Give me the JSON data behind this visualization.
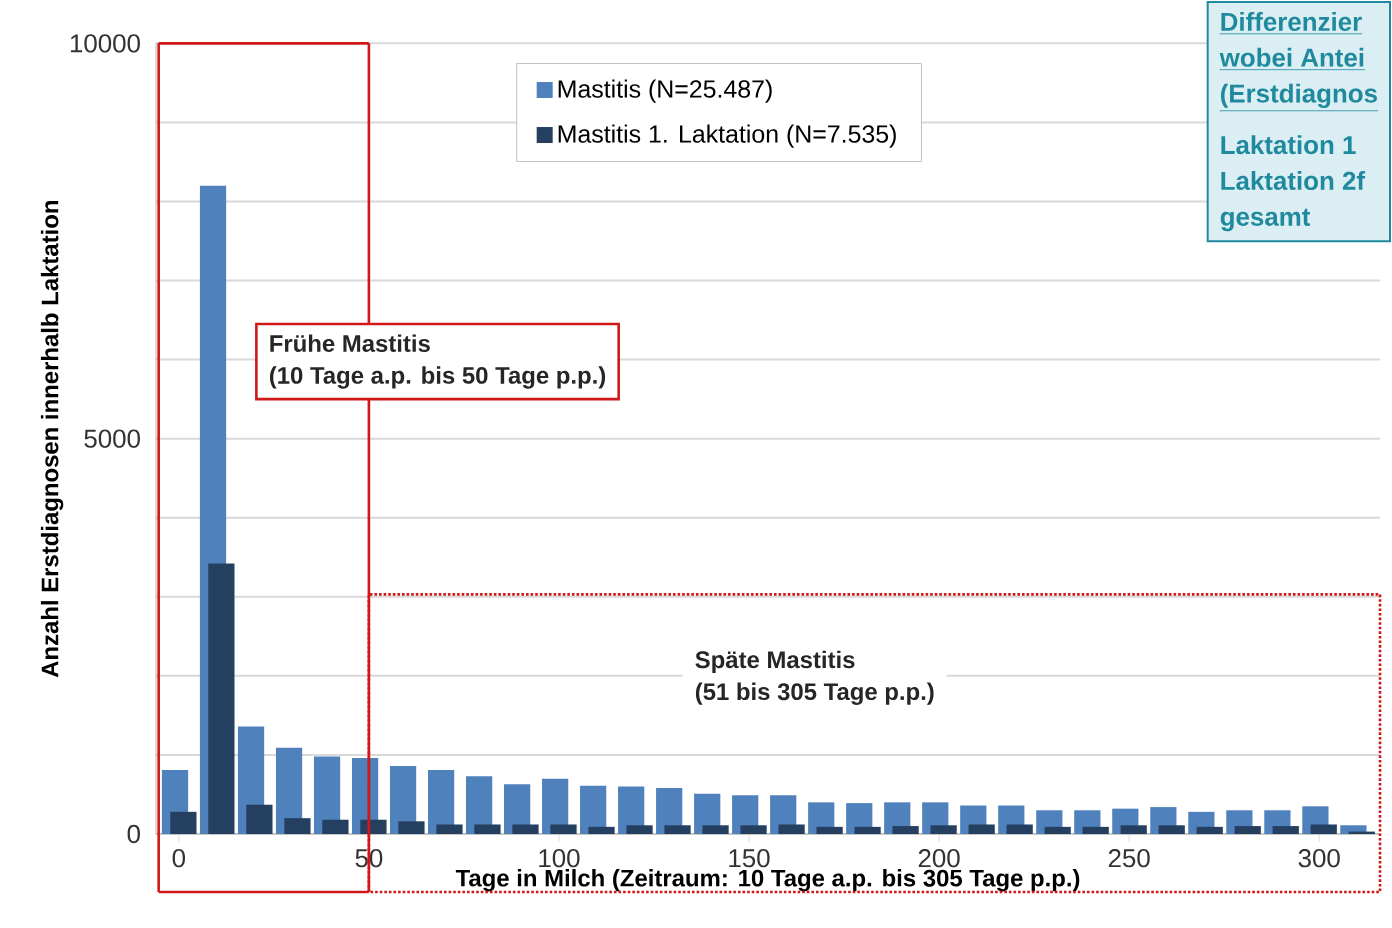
{
  "chart_data": {
    "type": "bar",
    "xlabel": "Tage in Milch (Zeitraum: 10 Tage a.p. bis 305 Tage p.p.)",
    "ylabel": "Anzahl Erstdiagnosen innerhalb Laktation",
    "x": [
      0,
      10,
      20,
      30,
      40,
      50,
      60,
      70,
      80,
      90,
      100,
      110,
      120,
      130,
      140,
      150,
      160,
      170,
      180,
      190,
      200,
      210,
      220,
      230,
      240,
      250,
      260,
      270,
      280,
      290,
      300,
      310
    ],
    "series": [
      {
        "name": "Mastitis (N=25.487)",
        "color": "#4f81bd",
        "values": [
          810,
          8200,
          1360,
          1090,
          980,
          960,
          860,
          810,
          730,
          630,
          700,
          610,
          600,
          580,
          510,
          490,
          490,
          400,
          390,
          400,
          400,
          360,
          360,
          300,
          300,
          320,
          340,
          280,
          300,
          300,
          350,
          110
        ]
      },
      {
        "name": "Mastitis 1. Laktation (N=7.535)",
        "color": "#243f60",
        "values": [
          280,
          3420,
          370,
          200,
          180,
          180,
          160,
          120,
          120,
          120,
          120,
          90,
          110,
          110,
          110,
          110,
          120,
          90,
          90,
          100,
          110,
          120,
          120,
          90,
          90,
          110,
          110,
          90,
          100,
          100,
          120,
          30
        ]
      }
    ],
    "xlim": [
      -6,
      316
    ],
    "ylim": [
      0,
      10000
    ],
    "xticks": [
      0,
      50,
      100,
      150,
      200,
      250,
      300
    ],
    "yticks": [
      0,
      {
        "value": 1000,
        "label": null
      },
      {
        "value": 2000,
        "label": null
      },
      {
        "value": 3000,
        "label": null
      },
      {
        "value": 4000,
        "label": null
      },
      5000,
      {
        "value": 6000,
        "label": null
      },
      {
        "value": 7000,
        "label": null
      },
      {
        "value": 8000,
        "label": null
      },
      {
        "value": 9000,
        "label": null
      },
      10000
    ],
    "grid": "y",
    "legend": "top",
    "ref_lines": [
      {
        "axis": "x",
        "value": 50,
        "color": "#d01818"
      }
    ],
    "annotations": [
      "Frühe Mastitis",
      "(10 Tage a.p. bis 50 Tage p.p.)",
      "Späte Mastitis",
      "(51 bis 305 Tage p.p.)",
      "Differenzier",
      "wobei Antei",
      "(Erstdiagnos",
      "Laktation 1",
      "Laktation 2f",
      "gesamt"
    ]
  }
}
